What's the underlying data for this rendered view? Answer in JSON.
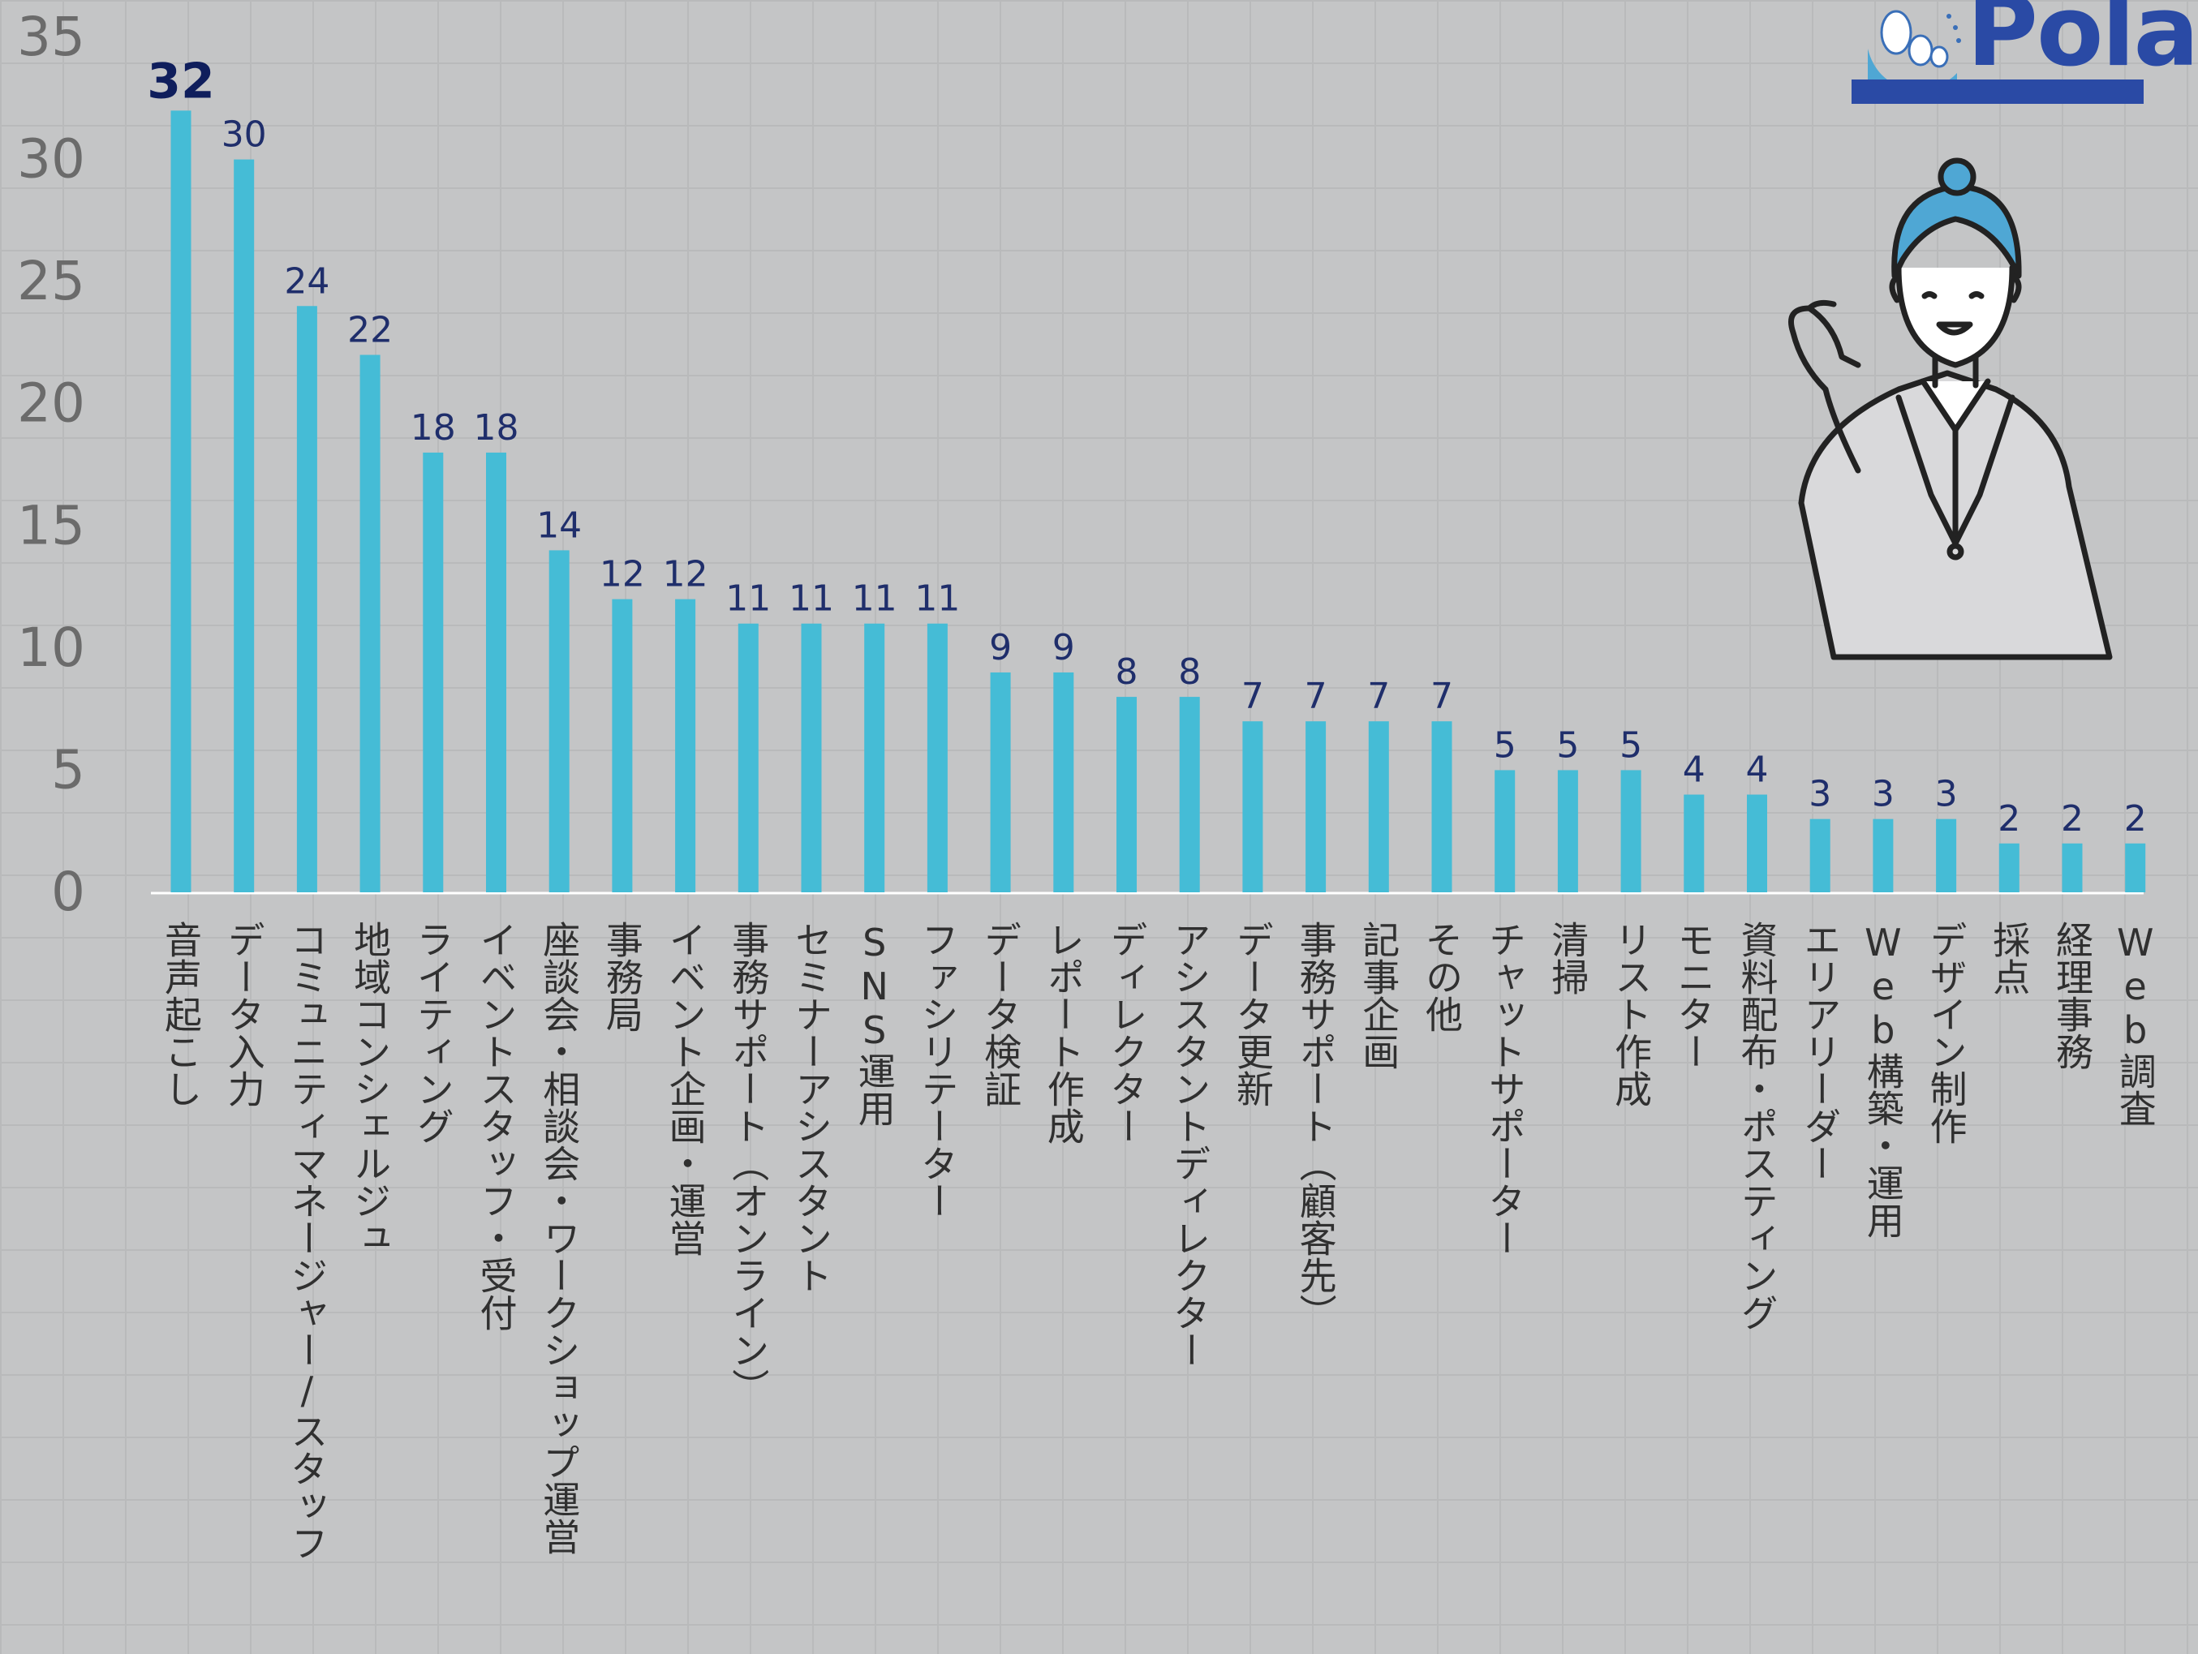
{
  "chart_data": {
    "type": "bar",
    "title": "",
    "xlabel": "",
    "ylabel": "",
    "ylim": [
      0,
      35
    ],
    "yticks": [
      0,
      5,
      10,
      15,
      20,
      25,
      30,
      35
    ],
    "grid": true,
    "legend": "none",
    "bar_color": "#45bcd6",
    "categories": [
      "音声起こし",
      "データ入力",
      "コミュニティマネージャー/スタッフ",
      "地域コンシェルジュ",
      "ライティング",
      "イベントスタッフ・受付",
      "座談会・相談会・ワークショップ運営",
      "事務局",
      "イベント企画・運営",
      "事務サポート（オンライン）",
      "セミナーアシスタント",
      "SNS運用",
      "ファシリテーター",
      "データ検証",
      "レポート作成",
      "ディレクター",
      "アシスタントディレクター",
      "データ更新",
      "事務サポート（顧客先）",
      "記事企画",
      "その他",
      "チャットサポーター",
      "清掃",
      "リスト作成",
      "モニター",
      "資料配布・ポスティング",
      "エリアリーダー",
      "Web構築・運用",
      "デザイン制作",
      "採点",
      "経理事務",
      "Web調査"
    ],
    "values": [
      32,
      30,
      24,
      22,
      18,
      18,
      14,
      12,
      12,
      11,
      11,
      11,
      11,
      9,
      9,
      8,
      8,
      7,
      7,
      7,
      7,
      5,
      5,
      5,
      4,
      4,
      3,
      3,
      3,
      2,
      2,
      2
    ],
    "value_labels": [
      "32",
      "30",
      "24",
      "22",
      "18",
      "18",
      "14",
      "12",
      "12",
      "11",
      "11",
      "11",
      "11",
      "9",
      "9",
      "8",
      "8",
      "7",
      "7",
      "7",
      "7",
      "5",
      "5",
      "5",
      "4",
      "4",
      "3",
      "3",
      "3",
      "2",
      "2",
      "2"
    ]
  },
  "logo": {
    "text": "Pola",
    "color": "#2a4aa5"
  },
  "illustration": {
    "name": "presenter-woman-illustration",
    "hair_color": "#4fa7d4"
  }
}
